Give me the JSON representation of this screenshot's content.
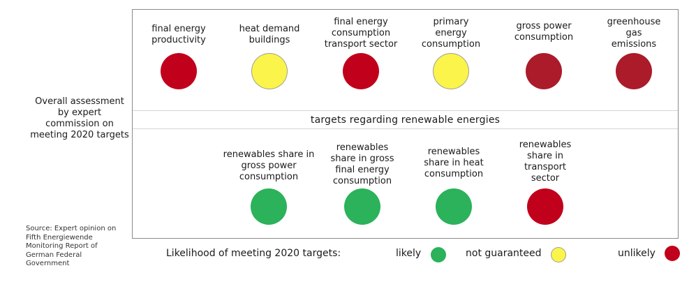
{
  "colors": {
    "likely": "#2bb25a",
    "not_guaranteed": "#fbf44a",
    "unlikely": "#c1001b",
    "unlikely_dark": "#ab1b2a",
    "circle_outline": "#a0a0a0"
  },
  "side_label": [
    "Overall assessment",
    "by expert",
    "commission on",
    "meeting 2020 targets"
  ],
  "source_note": [
    "Source: Expert opinion on",
    "Fifth Energiewende",
    "Monitoring Report of",
    "German Federal",
    "Government"
  ],
  "band_title": "targets regarding renewable energies",
  "top_targets": [
    {
      "label": [
        "final energy",
        "productivity"
      ],
      "status": "unlikely",
      "color": "#c1001b"
    },
    {
      "label": [
        "heat demand",
        "buildings"
      ],
      "status": "not guaranteed",
      "color": "#fbf44a"
    },
    {
      "label": [
        "final energy",
        "consumption",
        "transport sector"
      ],
      "status": "unlikely",
      "color": "#c1001b"
    },
    {
      "label": [
        "primary",
        "energy",
        "consumption"
      ],
      "status": "not guaranteed",
      "color": "#fbf44a"
    },
    {
      "label": [
        "gross power",
        "consumption"
      ],
      "status": "unlikely",
      "color": "#ab1b2a"
    },
    {
      "label": [
        "greenhouse",
        "gas",
        "emissions"
      ],
      "status": "unlikely",
      "color": "#ab1b2a"
    }
  ],
  "renewable_targets": [
    {
      "label": [
        "renewables share in",
        "gross power",
        "consumption"
      ],
      "status": "likely",
      "color": "#2bb25a"
    },
    {
      "label": [
        "renewables",
        "share in gross",
        "final energy",
        "consumption"
      ],
      "status": "likely",
      "color": "#2bb25a"
    },
    {
      "label": [
        "renewables",
        "share in heat",
        "consumption"
      ],
      "status": "likely",
      "color": "#2bb25a"
    },
    {
      "label": [
        "renewables",
        "share in",
        "transport",
        "sector"
      ],
      "status": "unlikely",
      "color": "#c1001b"
    }
  ],
  "legend": {
    "title": "Likelihood of meeting 2020 targets:",
    "likely": "likely",
    "not_guaranteed": "not guaranteed",
    "unlikely": "unlikely"
  }
}
